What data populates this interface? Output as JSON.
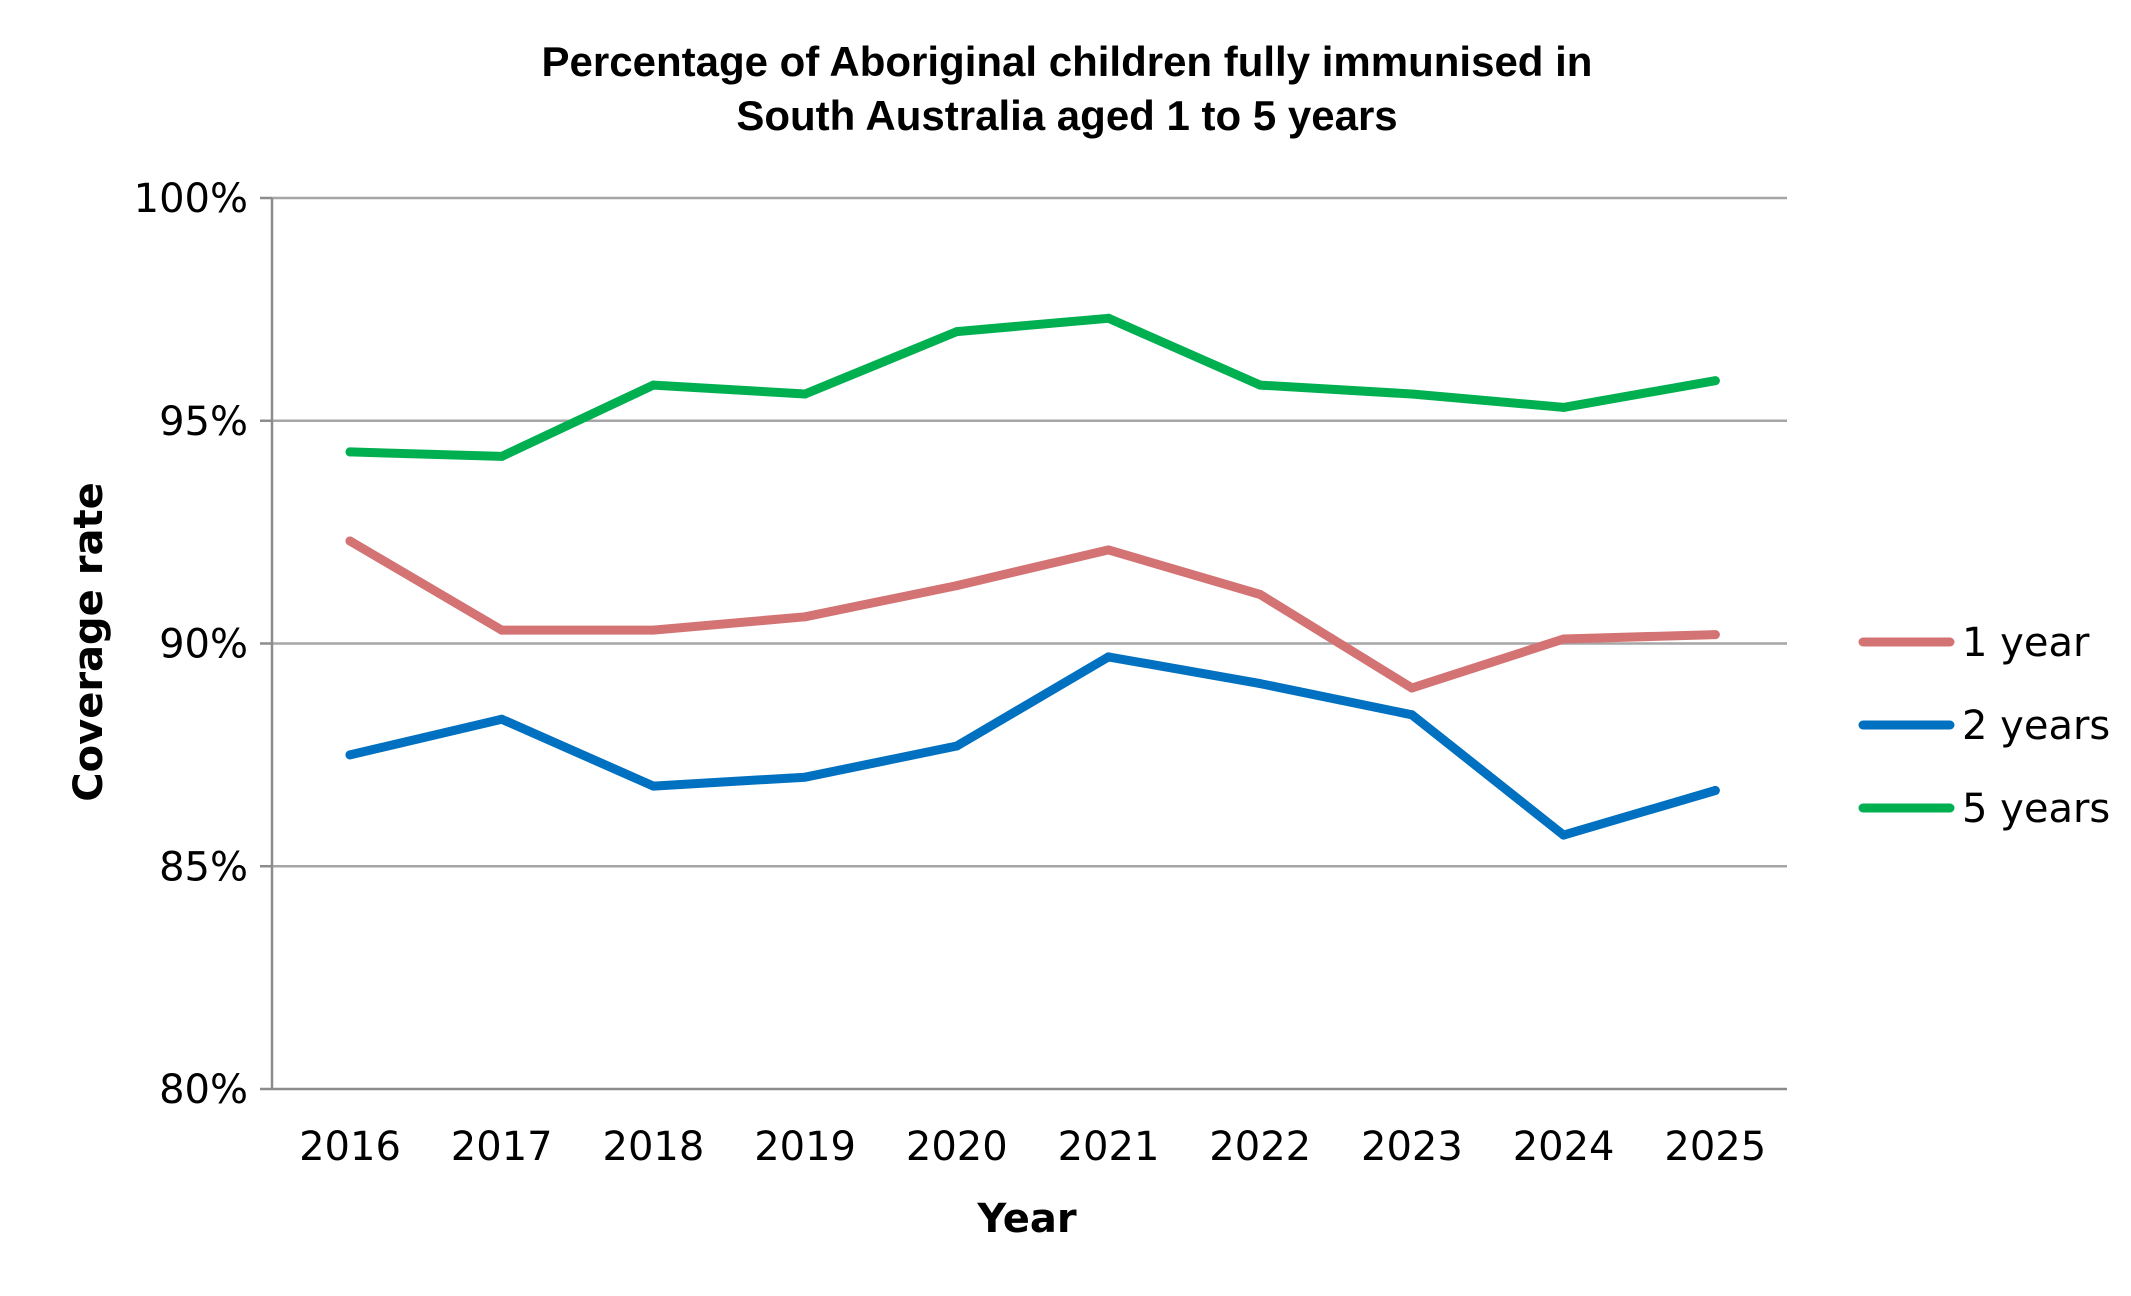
{
  "chart_data": {
    "type": "line",
    "title_lines": [
      "Percentage of Aboriginal children fully immunised in",
      "South Australia aged 1 to 5 years"
    ],
    "xlabel": "Year",
    "ylabel": "Coverage rate",
    "x": [
      "2016",
      "2017",
      "2018",
      "2019",
      "2020",
      "2021",
      "2022",
      "2023",
      "2024",
      "2025"
    ],
    "ylim": [
      80,
      100
    ],
    "yticks": [
      80,
      85,
      90,
      95,
      100
    ],
    "ytick_labels": [
      "80%",
      "85%",
      "90%",
      "95%",
      "100%"
    ],
    "grid": true,
    "legend": "right",
    "series": [
      {
        "name": "1 year",
        "color": "#d47373",
        "values": [
          92.3,
          90.3,
          90.3,
          90.6,
          91.3,
          92.1,
          91.1,
          89.0,
          90.1,
          90.2
        ]
      },
      {
        "name": "2 years",
        "color": "#0070c0",
        "values": [
          87.5,
          88.3,
          86.8,
          87.0,
          87.7,
          89.7,
          89.1,
          88.4,
          85.7,
          86.7
        ]
      },
      {
        "name": "5 years",
        "color": "#00b050",
        "values": [
          94.3,
          94.2,
          95.8,
          95.6,
          97.0,
          97.3,
          95.8,
          95.6,
          95.3,
          95.9
        ]
      }
    ]
  }
}
